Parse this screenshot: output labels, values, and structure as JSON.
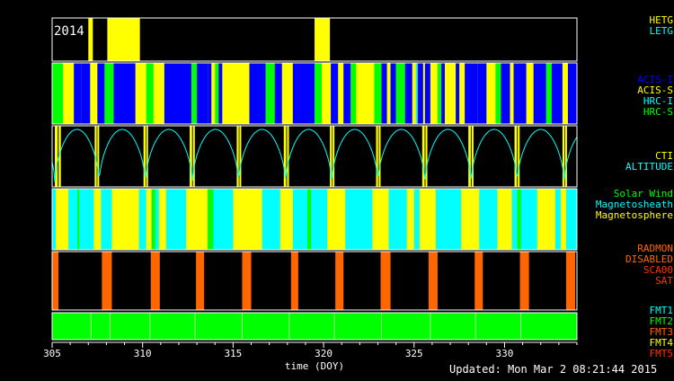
{
  "chart_data": {
    "type": "timeline",
    "year_label": "2014",
    "xlabel": "time (DOY)",
    "xlim": [
      305,
      334
    ],
    "ticks": [
      305,
      310,
      315,
      320,
      325,
      330
    ],
    "updated": "Updated: Mon Mar  2 08:21:44 2015",
    "panels": [
      {
        "id": "grating",
        "legend": [
          {
            "label": "HETG",
            "color": "#ffff00"
          },
          {
            "label": "LETG",
            "color": "#00ffff"
          }
        ],
        "background": "#000000",
        "intervals": [
          {
            "start": 307.0,
            "end": 307.25,
            "color": "#ffff00"
          },
          {
            "start": 308.05,
            "end": 309.85,
            "color": "#ffff00"
          },
          {
            "start": 319.5,
            "end": 320.35,
            "color": "#ffff00"
          }
        ]
      },
      {
        "id": "instrument",
        "legend": [
          {
            "label": "ACIS-I",
            "color": "#0000ff"
          },
          {
            "label": "ACIS-S",
            "color": "#ffff00"
          },
          {
            "label": "HRC-I",
            "color": "#00ffff"
          },
          {
            "label": "HRC-S",
            "color": "#00ff00"
          }
        ],
        "background": "#ffff00",
        "intervals": [
          {
            "start": 305.0,
            "end": 305.6,
            "color": "#00ff00"
          },
          {
            "start": 306.2,
            "end": 306.6,
            "color": "#0000ff"
          },
          {
            "start": 306.6,
            "end": 307.1,
            "color": "#0000ff"
          },
          {
            "start": 307.5,
            "end": 307.9,
            "color": "#0000ff"
          },
          {
            "start": 307.9,
            "end": 308.4,
            "color": "#00ff00"
          },
          {
            "start": 308.4,
            "end": 309.6,
            "color": "#0000ff"
          },
          {
            "start": 310.2,
            "end": 310.6,
            "color": "#00ff00"
          },
          {
            "start": 311.2,
            "end": 312.7,
            "color": "#0000ff"
          },
          {
            "start": 312.7,
            "end": 313.0,
            "color": "#00ff00"
          },
          {
            "start": 313.0,
            "end": 313.6,
            "color": "#0000ff"
          },
          {
            "start": 313.6,
            "end": 313.8,
            "color": "#0000ff"
          },
          {
            "start": 314.0,
            "end": 314.2,
            "color": "#00ff00"
          },
          {
            "start": 314.2,
            "end": 314.4,
            "color": "#0000ff"
          },
          {
            "start": 315.9,
            "end": 316.8,
            "color": "#0000ff"
          },
          {
            "start": 316.8,
            "end": 317.3,
            "color": "#00ff00"
          },
          {
            "start": 317.3,
            "end": 317.7,
            "color": "#0000ff"
          },
          {
            "start": 318.3,
            "end": 319.5,
            "color": "#0000ff"
          },
          {
            "start": 319.5,
            "end": 319.9,
            "color": "#00ff00"
          },
          {
            "start": 320.4,
            "end": 320.8,
            "color": "#0000ff"
          },
          {
            "start": 321.1,
            "end": 321.5,
            "color": "#0000ff"
          },
          {
            "start": 321.5,
            "end": 321.8,
            "color": "#00ff00"
          },
          {
            "start": 322.8,
            "end": 323.2,
            "color": "#00ff00"
          },
          {
            "start": 323.2,
            "end": 323.5,
            "color": "#0000ff"
          },
          {
            "start": 323.7,
            "end": 324.0,
            "color": "#0000ff"
          },
          {
            "start": 324.0,
            "end": 324.5,
            "color": "#00ff00"
          },
          {
            "start": 324.5,
            "end": 324.9,
            "color": "#0000ff"
          },
          {
            "start": 325.1,
            "end": 325.2,
            "color": "#00ffff"
          },
          {
            "start": 325.2,
            "end": 325.5,
            "color": "#0000ff"
          },
          {
            "start": 325.6,
            "end": 325.9,
            "color": "#0000ff"
          },
          {
            "start": 326.3,
            "end": 326.5,
            "color": "#00ff00"
          },
          {
            "start": 326.5,
            "end": 326.7,
            "color": "#0000ff"
          },
          {
            "start": 327.3,
            "end": 327.5,
            "color": "#0000ff"
          },
          {
            "start": 327.8,
            "end": 328.5,
            "color": "#0000ff"
          },
          {
            "start": 328.5,
            "end": 329.0,
            "color": "#0000ff"
          },
          {
            "start": 329.5,
            "end": 329.8,
            "color": "#00ff00"
          },
          {
            "start": 329.8,
            "end": 330.3,
            "color": "#0000ff"
          },
          {
            "start": 330.5,
            "end": 331.2,
            "color": "#0000ff"
          },
          {
            "start": 331.6,
            "end": 332.3,
            "color": "#0000ff"
          },
          {
            "start": 332.3,
            "end": 332.6,
            "color": "#00ff00"
          },
          {
            "start": 332.6,
            "end": 333.2,
            "color": "#0000ff"
          },
          {
            "start": 333.5,
            "end": 334.0,
            "color": "#0000ff"
          }
        ]
      },
      {
        "id": "altitude",
        "legend": [
          {
            "label": "CTI",
            "color": "#ffff00"
          },
          {
            "label": "ALTITUDE",
            "color": "#00ffff"
          }
        ],
        "background": "#000000",
        "perigees": [
          305.15,
          307.6,
          310.15,
          312.75,
          315.3,
          317.9,
          320.45,
          323.0,
          325.6,
          328.15,
          330.7,
          333.3
        ],
        "cti_bars": [
          305.15,
          305.5,
          307.35,
          307.6,
          310.05,
          310.3,
          312.6,
          312.9,
          315.2,
          315.45,
          317.8,
          318.1,
          320.35,
          320.6,
          322.9,
          323.15,
          325.45,
          325.75,
          328.0,
          328.3,
          330.55,
          330.85,
          333.2,
          333.45
        ]
      },
      {
        "id": "environment",
        "legend": [
          {
            "label": "Solar Wind",
            "color": "#00ff00"
          },
          {
            "label": "Magnetosheath",
            "color": "#00ffff"
          },
          {
            "label": "Magnetosphere",
            "color": "#ffff00"
          }
        ],
        "background": "#00ffff",
        "intervals": [
          {
            "start": 305.2,
            "end": 305.9,
            "color": "#ffff00"
          },
          {
            "start": 306.4,
            "end": 306.5,
            "color": "#00ff00"
          },
          {
            "start": 307.3,
            "end": 307.7,
            "color": "#ffff00"
          },
          {
            "start": 308.3,
            "end": 309.8,
            "color": "#ffff00"
          },
          {
            "start": 310.2,
            "end": 310.5,
            "color": "#ffff00"
          },
          {
            "start": 310.5,
            "end": 310.7,
            "color": "#00ff00"
          },
          {
            "start": 310.9,
            "end": 311.3,
            "color": "#ffff00"
          },
          {
            "start": 312.4,
            "end": 313.6,
            "color": "#ffff00"
          },
          {
            "start": 313.6,
            "end": 313.9,
            "color": "#00ff00"
          },
          {
            "start": 315.0,
            "end": 316.6,
            "color": "#ffff00"
          },
          {
            "start": 317.6,
            "end": 318.3,
            "color": "#ffff00"
          },
          {
            "start": 319.1,
            "end": 319.3,
            "color": "#00ff00"
          },
          {
            "start": 320.2,
            "end": 321.2,
            "color": "#ffff00"
          },
          {
            "start": 322.7,
            "end": 323.6,
            "color": "#ffff00"
          },
          {
            "start": 324.6,
            "end": 325.0,
            "color": "#ffff00"
          },
          {
            "start": 325.3,
            "end": 326.2,
            "color": "#ffff00"
          },
          {
            "start": 327.6,
            "end": 328.6,
            "color": "#ffff00"
          },
          {
            "start": 329.6,
            "end": 330.4,
            "color": "#ffff00"
          },
          {
            "start": 330.7,
            "end": 330.9,
            "color": "#00ff00"
          },
          {
            "start": 331.8,
            "end": 332.8,
            "color": "#ffff00"
          },
          {
            "start": 333.1,
            "end": 333.4,
            "color": "#ffff00"
          }
        ]
      },
      {
        "id": "radmon",
        "legend": [
          {
            "label": "RADMON",
            "color": "#ff6600"
          },
          {
            "label": "DISABLED",
            "color": "#ff6600"
          },
          {
            "label": "SCA00",
            "color": "#ff3300"
          },
          {
            "label": "SAT",
            "color": "#ff3300"
          }
        ],
        "background": "#000000",
        "intervals": [
          {
            "start": 305.0,
            "end": 305.35,
            "color": "#ff6600"
          },
          {
            "start": 307.75,
            "end": 308.3,
            "color": "#ff6600"
          },
          {
            "start": 310.45,
            "end": 310.95,
            "color": "#ff6600"
          },
          {
            "start": 312.95,
            "end": 313.4,
            "color": "#ff6600"
          },
          {
            "start": 315.5,
            "end": 316.0,
            "color": "#ff6600"
          },
          {
            "start": 318.2,
            "end": 318.6,
            "color": "#ff6600"
          },
          {
            "start": 320.65,
            "end": 321.1,
            "color": "#ff6600"
          },
          {
            "start": 323.15,
            "end": 323.7,
            "color": "#ff6600"
          },
          {
            "start": 325.8,
            "end": 326.3,
            "color": "#ff6600"
          },
          {
            "start": 328.35,
            "end": 328.8,
            "color": "#ff6600"
          },
          {
            "start": 330.85,
            "end": 331.35,
            "color": "#ff6600"
          },
          {
            "start": 333.4,
            "end": 333.9,
            "color": "#ff6600"
          }
        ]
      },
      {
        "id": "format",
        "legend": [
          {
            "label": "FMT1",
            "color": "#00ffff"
          },
          {
            "label": "FMT2",
            "color": "#00ff00"
          },
          {
            "label": "FMT3",
            "color": "#ff6600"
          },
          {
            "label": "FMT4",
            "color": "#ffff00"
          },
          {
            "label": "FMT5",
            "color": "#ff3300"
          }
        ],
        "background": "#00ff00",
        "ticks": [
          307.15,
          308.2,
          310.4,
          312.9,
          315.5,
          318.1,
          320.6,
          323.2,
          325.9,
          328.4,
          330.9
        ]
      }
    ]
  }
}
